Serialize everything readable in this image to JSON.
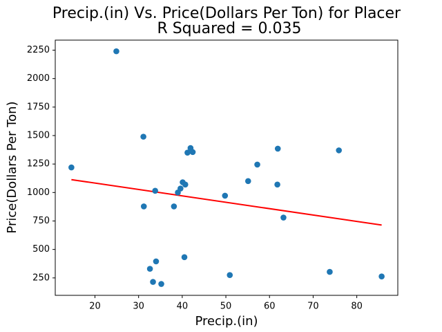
{
  "chart_data": {
    "type": "scatter",
    "title": "Precip.(in) Vs. Price(Dollars Per Ton) for Placer",
    "subtitle": "R Squared =  0.035",
    "xlabel": "Precip.(in)",
    "ylabel": "Price(Dollars Per Ton)",
    "xlim": [
      10.9,
      89.4
    ],
    "ylim": [
      97,
      2338
    ],
    "xticks": [
      20,
      30,
      40,
      50,
      60,
      70,
      80
    ],
    "yticks": [
      250,
      500,
      750,
      1000,
      1250,
      1500,
      1750,
      2000,
      2250
    ],
    "grid": false,
    "points": [
      {
        "x": 14.6,
        "y": 1220
      },
      {
        "x": 24.9,
        "y": 2240
      },
      {
        "x": 31.1,
        "y": 1490
      },
      {
        "x": 31.2,
        "y": 878
      },
      {
        "x": 32.6,
        "y": 330
      },
      {
        "x": 33.3,
        "y": 215
      },
      {
        "x": 33.8,
        "y": 1015
      },
      {
        "x": 34.0,
        "y": 395
      },
      {
        "x": 35.2,
        "y": 197
      },
      {
        "x": 38.1,
        "y": 878
      },
      {
        "x": 39.0,
        "y": 1000
      },
      {
        "x": 39.6,
        "y": 1035
      },
      {
        "x": 40.1,
        "y": 1090
      },
      {
        "x": 40.5,
        "y": 432
      },
      {
        "x": 40.7,
        "y": 1070
      },
      {
        "x": 41.2,
        "y": 1350
      },
      {
        "x": 41.9,
        "y": 1390
      },
      {
        "x": 42.4,
        "y": 1355
      },
      {
        "x": 49.8,
        "y": 972
      },
      {
        "x": 50.9,
        "y": 275
      },
      {
        "x": 55.1,
        "y": 1100
      },
      {
        "x": 57.2,
        "y": 1245
      },
      {
        "x": 61.8,
        "y": 1070
      },
      {
        "x": 61.9,
        "y": 1385
      },
      {
        "x": 63.2,
        "y": 780
      },
      {
        "x": 73.8,
        "y": 303
      },
      {
        "x": 75.9,
        "y": 1370
      },
      {
        "x": 85.7,
        "y": 263
      }
    ],
    "fit_line": {
      "x": [
        14.6,
        85.7
      ],
      "y": [
        1113,
        714
      ]
    },
    "colors": {
      "points": "#1f77b4",
      "fit_line": "#ff0000",
      "axes": "#000000"
    }
  }
}
